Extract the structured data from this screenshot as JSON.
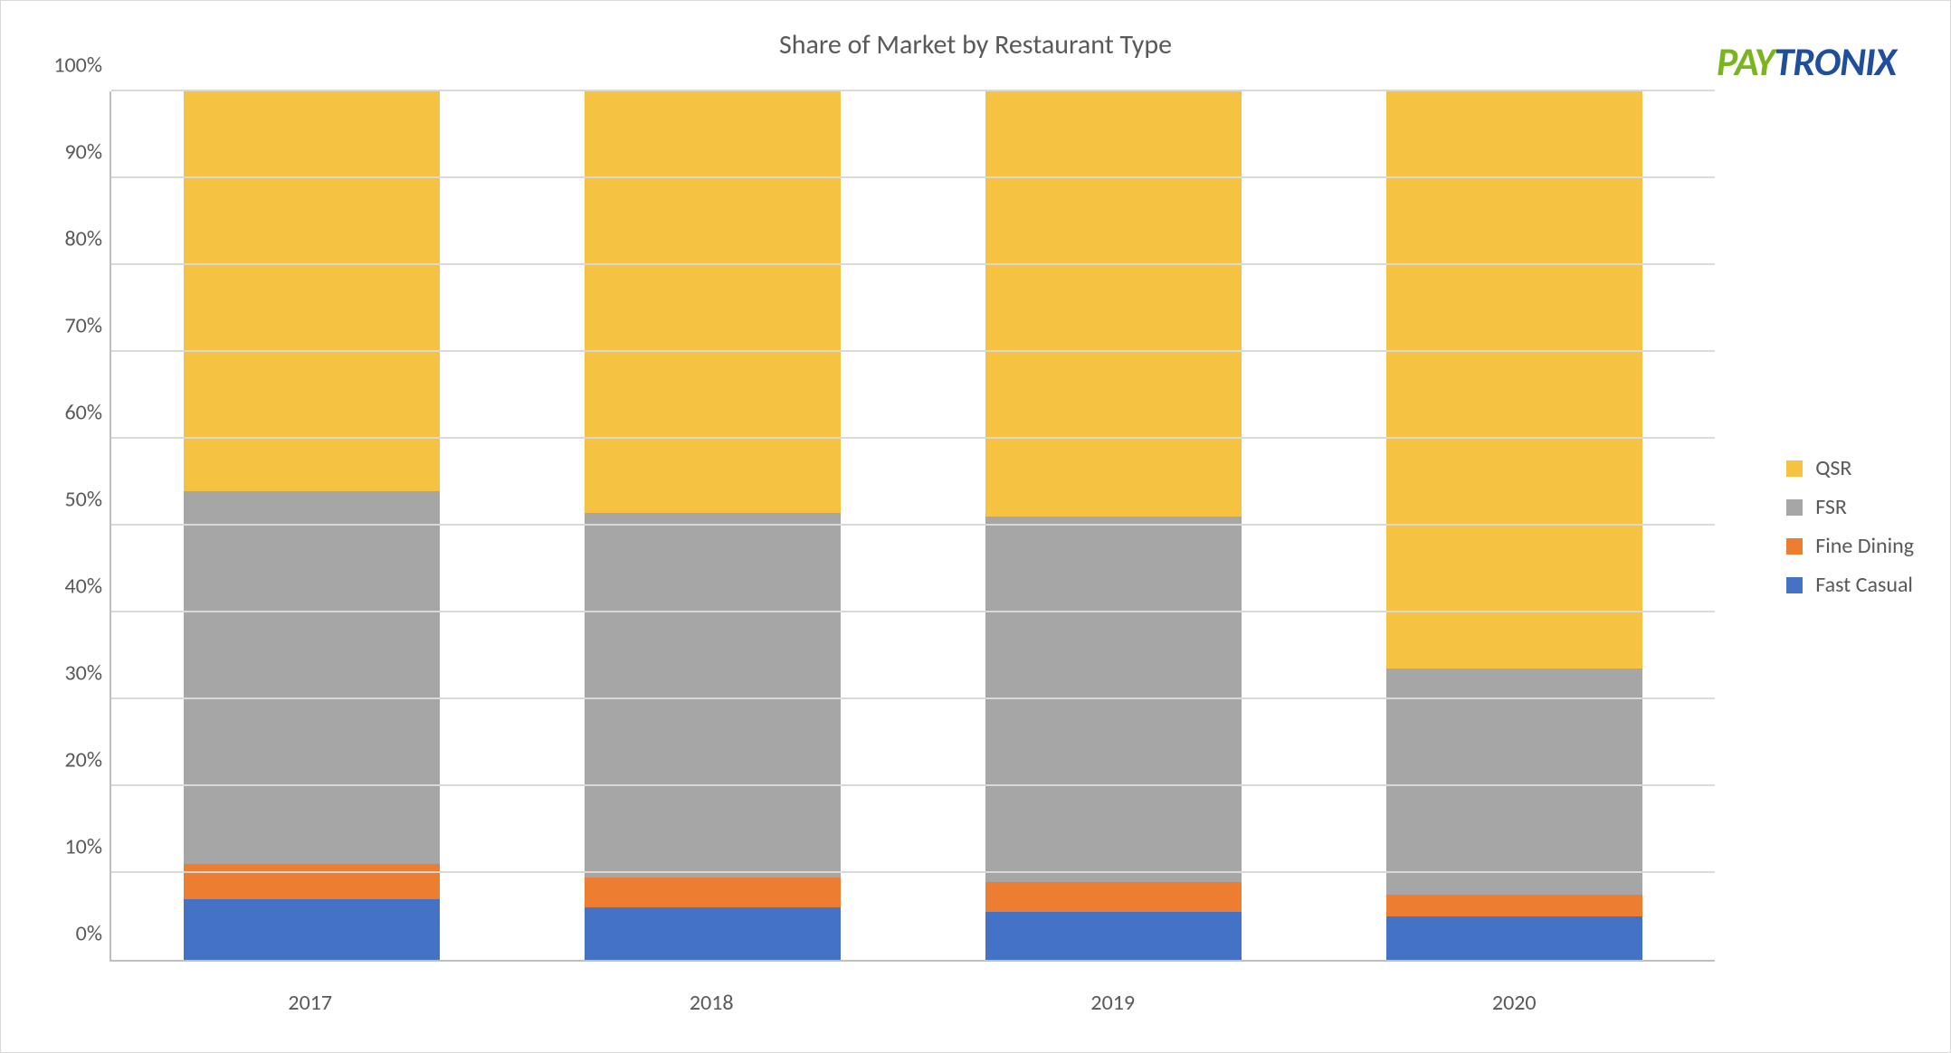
{
  "chart": {
    "type": "stacked-bar-100pct",
    "title": "Share of Market by Restaurant Type",
    "title_fontsize": 30,
    "title_color": "#595959",
    "background_color": "#ffffff",
    "border_color": "#d9d9d9",
    "grid_color": "#d9d9d9",
    "axis_color": "#bfbfbf",
    "label_color": "#595959",
    "label_fontsize": 24,
    "ylim": [
      0,
      100
    ],
    "ytick_step": 10,
    "y_suffix": "%",
    "bar_width_pct": 64,
    "categories": [
      "2017",
      "2018",
      "2019",
      "2020"
    ],
    "series_order_bottom_to_top": [
      "fast_casual",
      "fine_dining",
      "fsr",
      "qsr"
    ],
    "series": {
      "qsr": {
        "label": "QSR",
        "color": "#f5c242",
        "values": [
          46.0,
          48.5,
          49.0,
          66.5
        ]
      },
      "fsr": {
        "label": "FSR",
        "color": "#a6a6a6",
        "values": [
          43.0,
          42.0,
          42.0,
          26.0
        ]
      },
      "fine_dining": {
        "label": "Fine Dining",
        "color": "#ed7d31",
        "values": [
          4.0,
          3.5,
          3.5,
          2.5
        ]
      },
      "fast_casual": {
        "label": "Fast Casual",
        "color": "#4472c4",
        "values": [
          7.0,
          6.0,
          5.5,
          5.0
        ]
      }
    },
    "legend_order": [
      "qsr",
      "fsr",
      "fine_dining",
      "fast_casual"
    ]
  },
  "logo": {
    "pay": "PAY",
    "tronix": "TRONIX",
    "pay_color": "#7ab51d",
    "tronix_color": "#1f4e9c"
  }
}
